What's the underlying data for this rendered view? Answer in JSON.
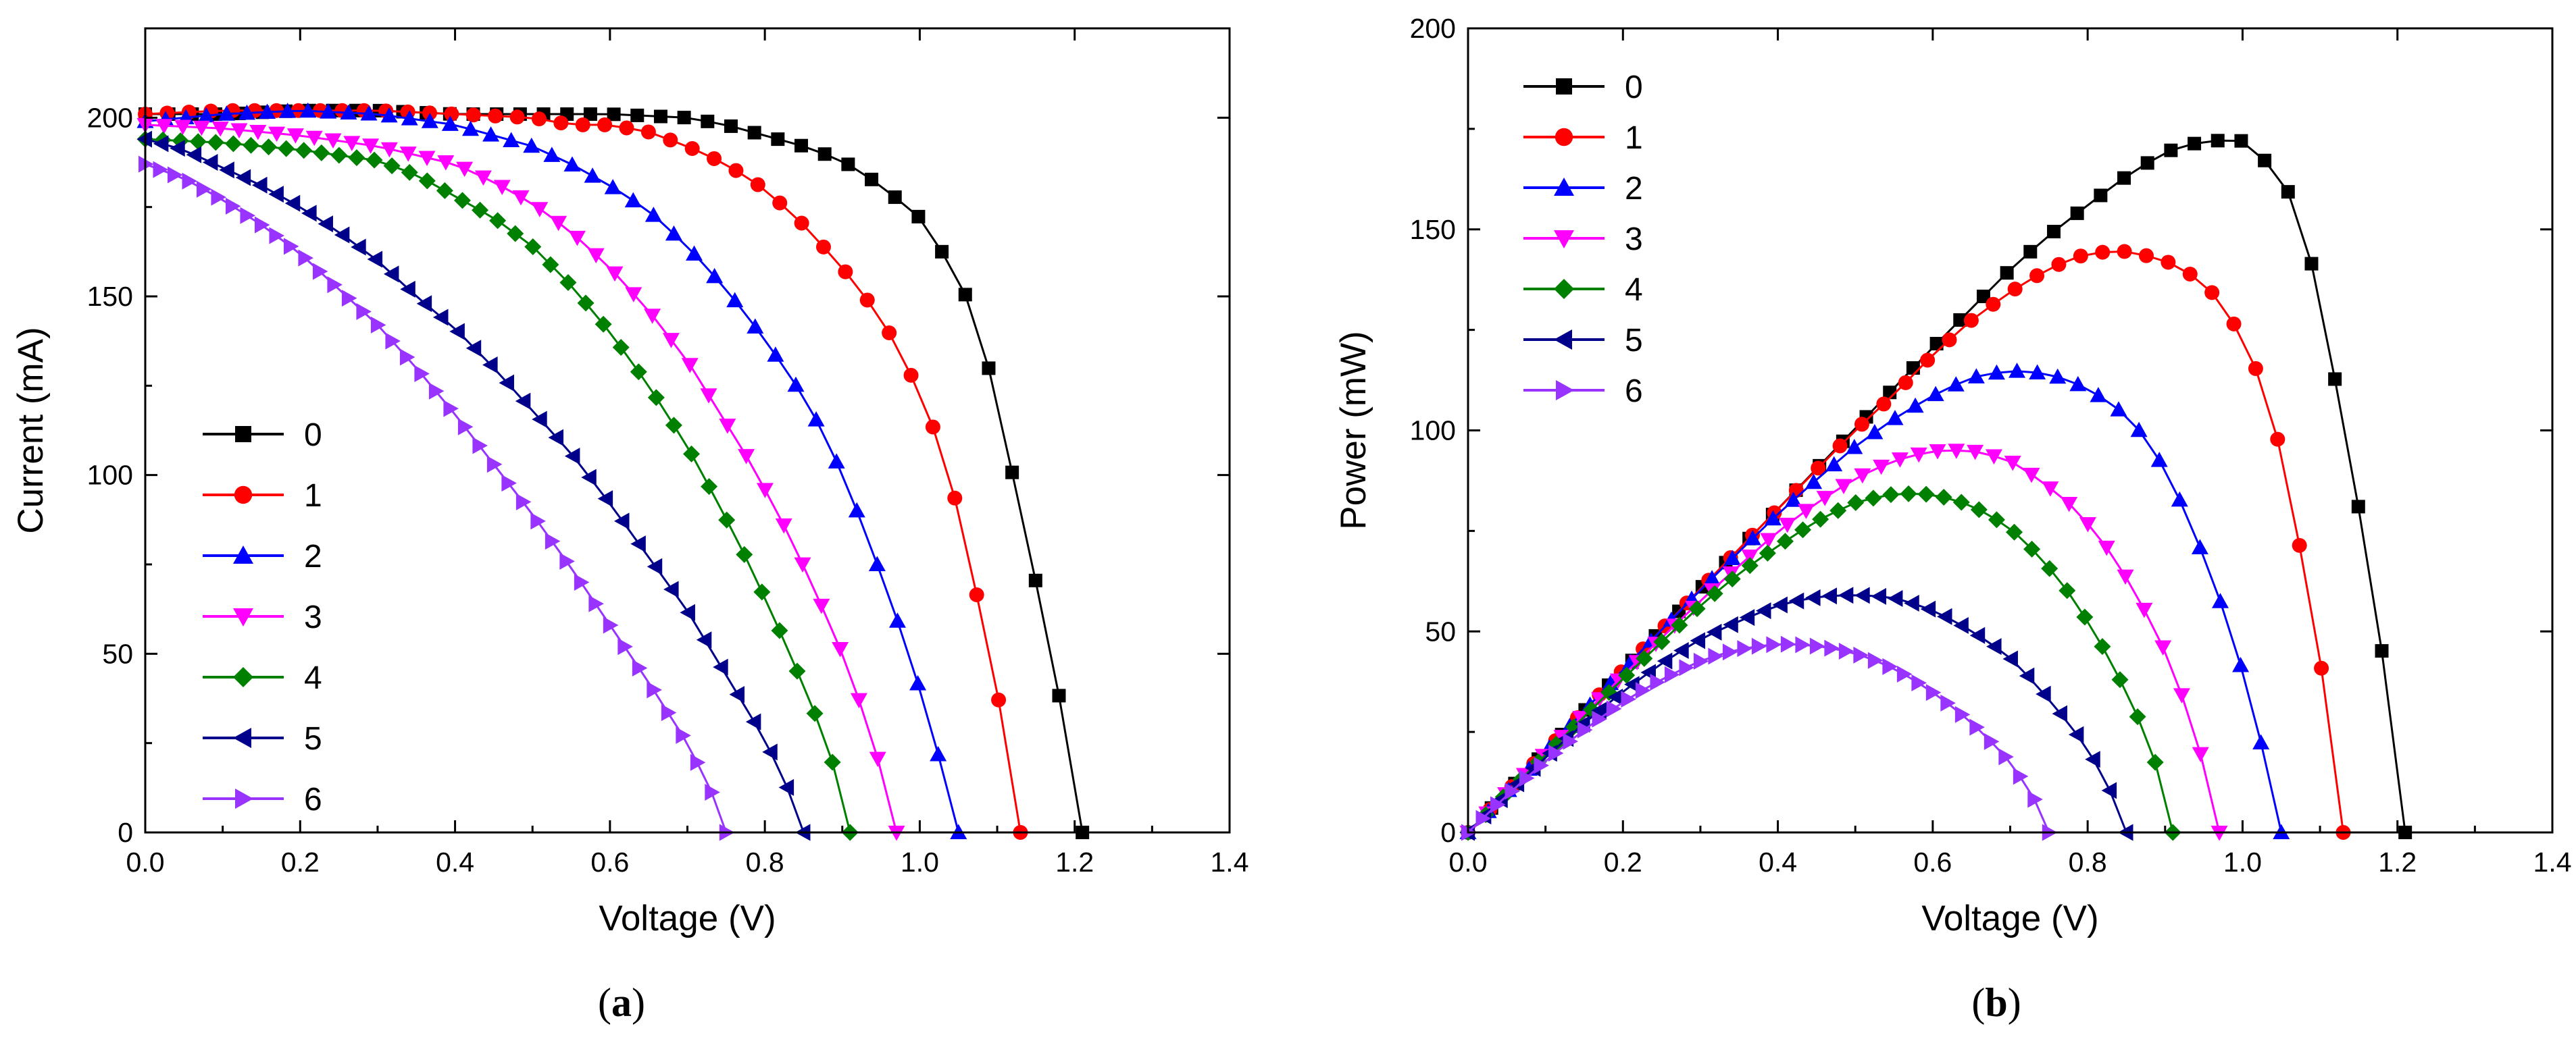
{
  "chart_data": [
    {
      "type": "scatter",
      "panel_label": "(a)",
      "panel_letter": "a",
      "xlabel": "Voltage (V)",
      "ylabel": "Current (mA)",
      "xlim": [
        0,
        1.4
      ],
      "ylim": [
        0,
        225
      ],
      "xticks": [
        0.0,
        0.2,
        0.4,
        0.6,
        0.8,
        1.0,
        1.2,
        1.4
      ],
      "xtick_labels": [
        "0.0",
        "0.2",
        "0.4",
        "0.6",
        "0.8",
        "1.0",
        "1.2",
        "1.4"
      ],
      "yticks": [
        0,
        50,
        100,
        150,
        200
      ],
      "ytick_labels": [
        "0",
        "50",
        "100",
        "150",
        "200"
      ],
      "legend_position": "left-middle",
      "series": [
        {
          "name": "0",
          "color": "#000000",
          "marker": "square",
          "voc": 1.21,
          "points": [
            [
              0,
              201
            ],
            [
              0.1,
              201
            ],
            [
              0.2,
              202
            ],
            [
              0.3,
              202
            ],
            [
              0.4,
              201
            ],
            [
              0.5,
              201
            ],
            [
              0.6,
              201
            ],
            [
              0.7,
              200
            ],
            [
              0.75,
              198
            ],
            [
              0.8,
              195
            ],
            [
              0.85,
              192
            ],
            [
              0.9,
              188
            ],
            [
              0.95,
              181
            ],
            [
              1.0,
              172
            ],
            [
              1.03,
              162
            ],
            [
              1.06,
              150
            ],
            [
              1.08,
              138
            ],
            [
              1.1,
              120
            ],
            [
              1.12,
              100
            ],
            [
              1.14,
              80
            ],
            [
              1.16,
              60
            ],
            [
              1.18,
              38
            ],
            [
              1.2,
              15
            ],
            [
              1.21,
              0
            ]
          ]
        },
        {
          "name": "1",
          "color": "#ff0000",
          "marker": "circle",
          "voc": 1.13,
          "points": [
            [
              0,
              201
            ],
            [
              0.1,
              202
            ],
            [
              0.2,
              202
            ],
            [
              0.3,
              202
            ],
            [
              0.4,
              201
            ],
            [
              0.5,
              200
            ],
            [
              0.55,
              198
            ],
            [
              0.6,
              198
            ],
            [
              0.65,
              196
            ],
            [
              0.7,
              192
            ],
            [
              0.75,
              187
            ],
            [
              0.8,
              180
            ],
            [
              0.85,
              170
            ],
            [
              0.9,
              158
            ],
            [
              0.95,
              144
            ],
            [
              0.98,
              132
            ],
            [
              1.01,
              118
            ],
            [
              1.03,
              105
            ],
            [
              1.05,
              90
            ],
            [
              1.07,
              70
            ],
            [
              1.09,
              50
            ],
            [
              1.11,
              28
            ],
            [
              1.125,
              8
            ],
            [
              1.13,
              0
            ]
          ]
        },
        {
          "name": "2",
          "color": "#0000ff",
          "marker": "triangle-up",
          "voc": 1.05,
          "points": [
            [
              0,
              199
            ],
            [
              0.05,
              200
            ],
            [
              0.1,
              201
            ],
            [
              0.2,
              202
            ],
            [
              0.3,
              201
            ],
            [
              0.4,
              198
            ],
            [
              0.5,
              192
            ],
            [
              0.55,
              187
            ],
            [
              0.6,
              181
            ],
            [
              0.65,
              174
            ],
            [
              0.7,
              164
            ],
            [
              0.75,
              152
            ],
            [
              0.8,
              138
            ],
            [
              0.85,
              122
            ],
            [
              0.88,
              110
            ],
            [
              0.91,
              95
            ],
            [
              0.94,
              78
            ],
            [
              0.97,
              60
            ],
            [
              1.0,
              40
            ],
            [
              1.02,
              25
            ],
            [
              1.04,
              8
            ],
            [
              1.05,
              0
            ]
          ]
        },
        {
          "name": "3",
          "color": "#ff00ff",
          "marker": "triangle-down",
          "voc": 0.97,
          "points": [
            [
              0,
              198
            ],
            [
              0.1,
              197
            ],
            [
              0.2,
              195
            ],
            [
              0.3,
              192
            ],
            [
              0.4,
              187
            ],
            [
              0.45,
              182
            ],
            [
              0.5,
              176
            ],
            [
              0.55,
              168
            ],
            [
              0.6,
              158
            ],
            [
              0.65,
              146
            ],
            [
              0.7,
              132
            ],
            [
              0.74,
              118
            ],
            [
              0.78,
              104
            ],
            [
              0.82,
              88
            ],
            [
              0.86,
              70
            ],
            [
              0.9,
              50
            ],
            [
              0.93,
              32
            ],
            [
              0.955,
              14
            ],
            [
              0.97,
              0
            ]
          ]
        },
        {
          "name": "4",
          "color": "#008000",
          "marker": "diamond",
          "voc": 0.91,
          "points": [
            [
              0,
              194
            ],
            [
              0.1,
              193
            ],
            [
              0.2,
              191
            ],
            [
              0.3,
              188
            ],
            [
              0.35,
              184
            ],
            [
              0.4,
              178
            ],
            [
              0.45,
              172
            ],
            [
              0.5,
              164
            ],
            [
              0.55,
              153
            ],
            [
              0.6,
              140
            ],
            [
              0.65,
              125
            ],
            [
              0.7,
              108
            ],
            [
              0.74,
              92
            ],
            [
              0.78,
              75
            ],
            [
              0.82,
              56
            ],
            [
              0.86,
              36
            ],
            [
              0.89,
              18
            ],
            [
              0.91,
              0
            ]
          ]
        },
        {
          "name": "5",
          "color": "#00008b",
          "marker": "triangle-left",
          "voc": 0.85,
          "points": [
            [
              0,
              194
            ],
            [
              0.05,
              191
            ],
            [
              0.1,
              186
            ],
            [
              0.15,
              181
            ],
            [
              0.2,
              175
            ],
            [
              0.25,
              168
            ],
            [
              0.3,
              160
            ],
            [
              0.35,
              150
            ],
            [
              0.4,
              141
            ],
            [
              0.45,
              130
            ],
            [
              0.5,
              118
            ],
            [
              0.55,
              106
            ],
            [
              0.6,
              92
            ],
            [
              0.65,
              77
            ],
            [
              0.7,
              62
            ],
            [
              0.75,
              44
            ],
            [
              0.8,
              26
            ],
            [
              0.83,
              12
            ],
            [
              0.85,
              0
            ]
          ]
        },
        {
          "name": "6",
          "color": "#9933ff",
          "marker": "triangle-right",
          "voc": 0.75,
          "points": [
            [
              0,
              187
            ],
            [
              0.05,
              183
            ],
            [
              0.1,
              177
            ],
            [
              0.15,
              170
            ],
            [
              0.2,
              162
            ],
            [
              0.25,
              152
            ],
            [
              0.3,
              142
            ],
            [
              0.35,
              130
            ],
            [
              0.4,
              117
            ],
            [
              0.45,
              103
            ],
            [
              0.5,
              89
            ],
            [
              0.55,
              74
            ],
            [
              0.6,
              58
            ],
            [
              0.65,
              42
            ],
            [
              0.7,
              25
            ],
            [
              0.73,
              12
            ],
            [
              0.75,
              0
            ]
          ]
        }
      ]
    },
    {
      "type": "scatter",
      "panel_label": "(b)",
      "panel_letter": "b",
      "xlabel": "Voltage (V)",
      "ylabel": "Power (mW)",
      "xlim": [
        0,
        1.4
      ],
      "ylim": [
        0,
        200
      ],
      "xticks": [
        0.0,
        0.2,
        0.4,
        0.6,
        0.8,
        1.0,
        1.2,
        1.4
      ],
      "xtick_labels": [
        "0.0",
        "0.2",
        "0.4",
        "0.6",
        "0.8",
        "1.0",
        "1.2",
        "1.4"
      ],
      "yticks": [
        0,
        50,
        100,
        150,
        200
      ],
      "ytick_labels": [
        "0",
        "50",
        "100",
        "150",
        "200"
      ],
      "legend_position": "top-left",
      "series": [
        {
          "name": "0",
          "color": "#000000",
          "marker": "square",
          "derived_from": 0
        },
        {
          "name": "1",
          "color": "#ff0000",
          "marker": "circle",
          "derived_from": 1
        },
        {
          "name": "2",
          "color": "#0000ff",
          "marker": "triangle-up",
          "derived_from": 2
        },
        {
          "name": "3",
          "color": "#ff00ff",
          "marker": "triangle-down",
          "derived_from": 3
        },
        {
          "name": "4",
          "color": "#008000",
          "marker": "diamond",
          "derived_from": 4
        },
        {
          "name": "5",
          "color": "#00008b",
          "marker": "triangle-left",
          "derived_from": 5
        },
        {
          "name": "6",
          "color": "#9933ff",
          "marker": "triangle-right",
          "derived_from": 6
        }
      ]
    }
  ]
}
